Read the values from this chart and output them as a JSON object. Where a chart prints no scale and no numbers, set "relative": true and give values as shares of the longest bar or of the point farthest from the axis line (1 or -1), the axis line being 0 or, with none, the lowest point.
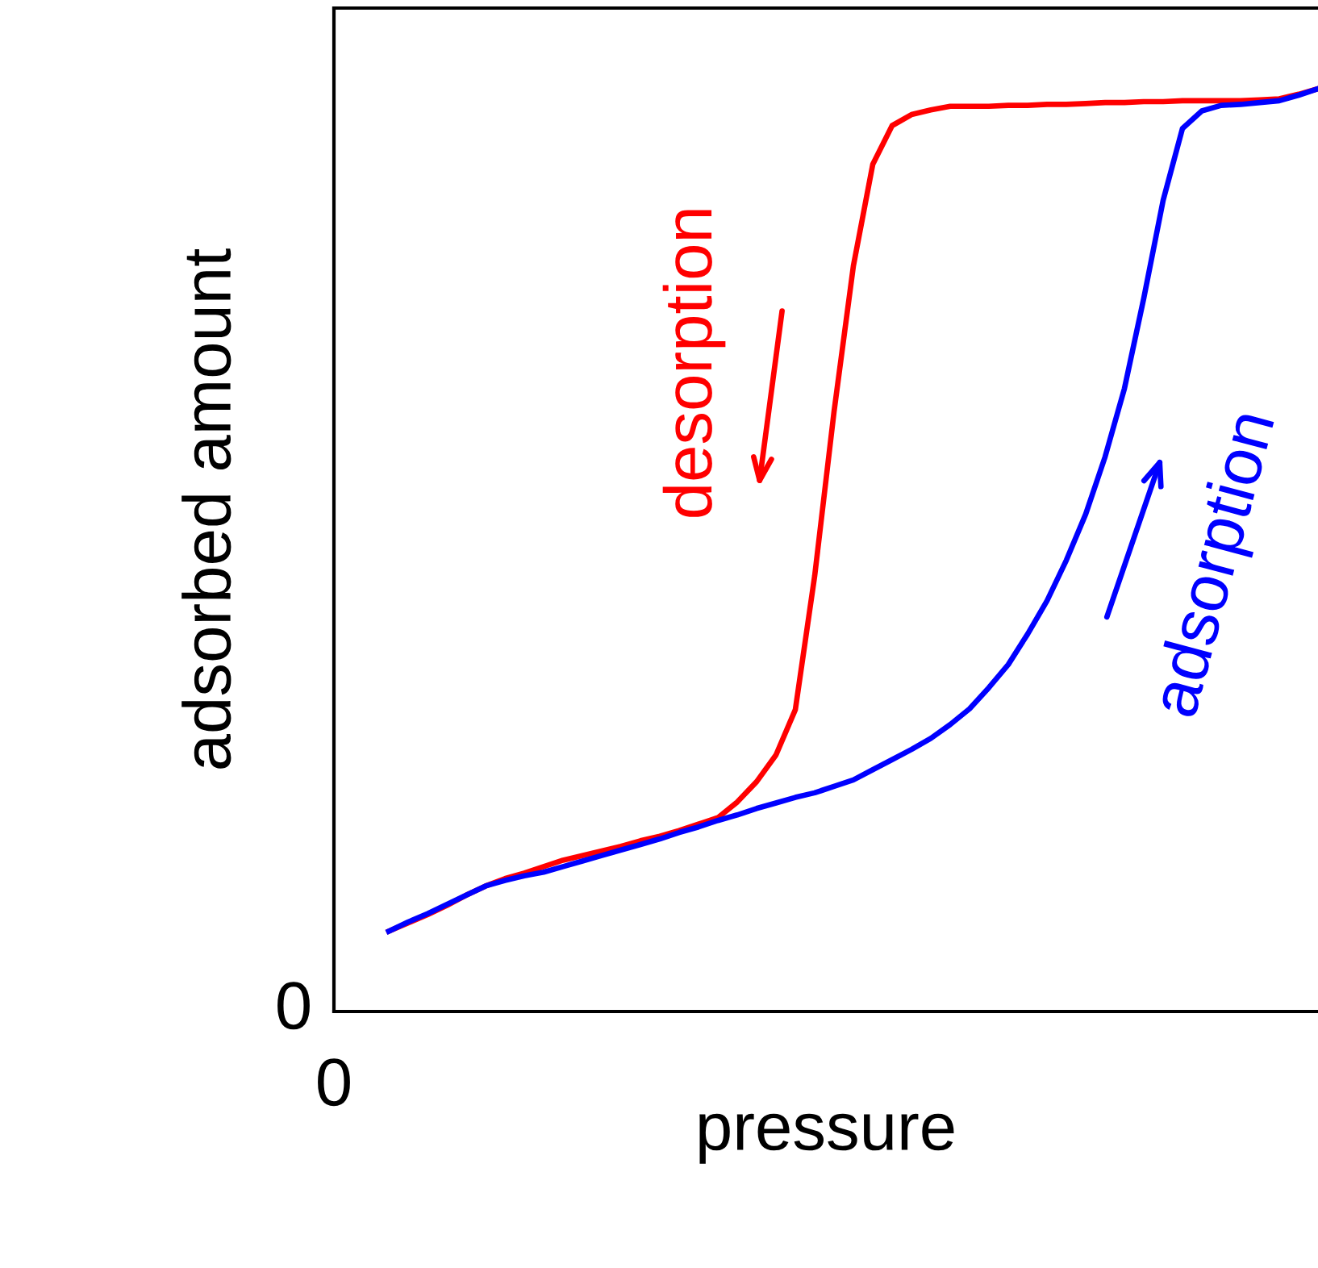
{
  "chart_data": {
    "type": "line",
    "relative": true,
    "xlabel": "pressure",
    "ylabel": "adsorbed amount",
    "annotations": [
      "0",
      "0"
    ],
    "marker": "none",
    "line_style": "solid",
    "categories": [
      null,
      null,
      null,
      null,
      null,
      null,
      null,
      null,
      null,
      null,
      null,
      null,
      null,
      null,
      null,
      null,
      null,
      null,
      null,
      null,
      null,
      null,
      null,
      null,
      null,
      null,
      null,
      null,
      null,
      null,
      null,
      null,
      null,
      null,
      null,
      null,
      null,
      null,
      null,
      null,
      null,
      null,
      null,
      null,
      null,
      null,
      null,
      null,
      null
    ],
    "series": [
      {
        "name": "desorption",
        "color": "#ff0000",
        "values": [
          0.087,
          0.096,
          0.105,
          0.115,
          0.126,
          0.136,
          0.144,
          0.15,
          0.157,
          0.164,
          0.169,
          0.174,
          0.179,
          0.185,
          0.19,
          0.196,
          0.203,
          0.21,
          0.227,
          0.249,
          0.278,
          0.327,
          0.472,
          0.65,
          0.808,
          0.918,
          0.96,
          0.972,
          0.977,
          0.981,
          0.981,
          0.981,
          0.982,
          0.982,
          0.983,
          0.983,
          0.984,
          0.985,
          0.985,
          0.986,
          0.986,
          0.987,
          0.987,
          0.987,
          0.987,
          0.988,
          0.989,
          0.994,
          1.0
        ]
      },
      {
        "name": "adsorption",
        "color": "#0000ff",
        "values": [
          0.087,
          0.097,
          0.106,
          0.116,
          0.126,
          0.136,
          0.142,
          0.147,
          0.151,
          0.157,
          0.163,
          0.169,
          0.175,
          0.181,
          0.187,
          0.194,
          0.2,
          0.207,
          0.213,
          0.22,
          0.226,
          0.232,
          0.237,
          0.244,
          0.251,
          0.262,
          0.273,
          0.284,
          0.296,
          0.311,
          0.328,
          0.351,
          0.376,
          0.409,
          0.445,
          0.489,
          0.539,
          0.601,
          0.675,
          0.773,
          0.879,
          0.957,
          0.976,
          0.982,
          0.983,
          0.985,
          0.987,
          0.993,
          1.0
        ]
      }
    ]
  }
}
